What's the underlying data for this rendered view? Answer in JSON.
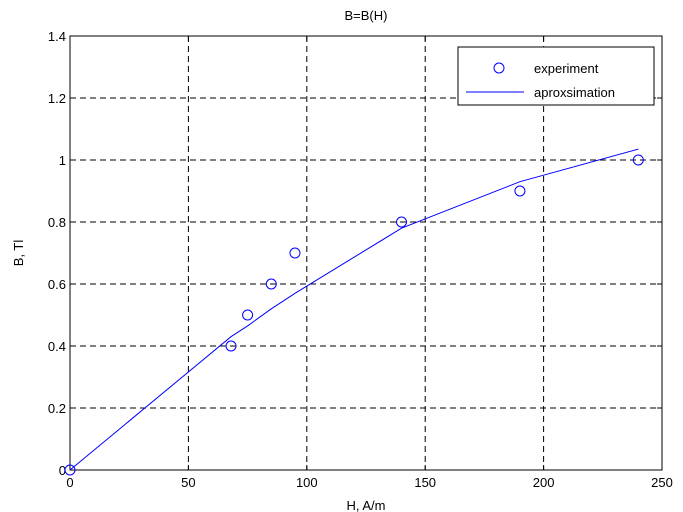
{
  "chart_data": {
    "type": "scatter",
    "title": "B=B(H)",
    "xlabel": "H, A/m",
    "ylabel": "B, Tl",
    "xlim": [
      0,
      250
    ],
    "ylim": [
      0,
      1.4
    ],
    "xticks": [
      0,
      50,
      100,
      150,
      200,
      250
    ],
    "yticks": [
      0,
      0.2,
      0.4,
      0.6,
      0.8,
      1,
      1.2,
      1.4
    ],
    "xtick_labels": [
      "0",
      "50",
      "100",
      "150",
      "200",
      "250"
    ],
    "ytick_labels": [
      "0",
      "0.2",
      "0.4",
      "0.6",
      "0.8",
      "1",
      "1.2",
      "1.4"
    ],
    "grid": true,
    "legend_position": "top-right",
    "series": [
      {
        "name": "experiment",
        "style": "markers",
        "marker": "circle",
        "x": [
          0,
          68,
          75,
          85,
          95,
          140,
          190,
          240
        ],
        "y": [
          0,
          0.4,
          0.5,
          0.6,
          0.7,
          0.8,
          0.9,
          1.0
        ]
      },
      {
        "name": "aproxsimation",
        "style": "line",
        "x": [
          0,
          68,
          75,
          85,
          95,
          140,
          190,
          240
        ],
        "y": [
          0,
          0.43,
          0.465,
          0.52,
          0.57,
          0.78,
          0.93,
          1.035
        ]
      }
    ],
    "colors": {
      "series": "#0000ff",
      "axes": "#000000",
      "grid": "#000000",
      "background": "#ffffff"
    }
  }
}
